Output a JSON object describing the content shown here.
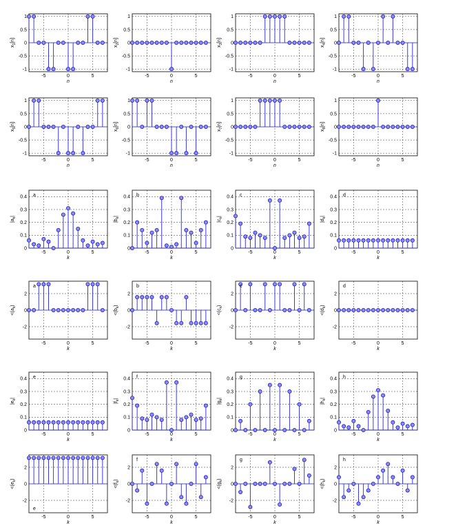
{
  "colors": {
    "stem": "#2323e6",
    "marker_fill": "#8c8cf0",
    "marker_edge": "#1e1ec8",
    "grid": "#000000"
  },
  "axis_defaults": {
    "signal": {
      "xlim": [
        -8,
        8
      ],
      "ylim": [
        -1.1,
        1.1
      ],
      "xticks": [
        "-5",
        "0",
        "5"
      ],
      "yticks": [
        "1",
        "0.5",
        "0",
        "-0.5",
        "-1"
      ],
      "xlabel": "n"
    },
    "magnitude": {
      "xlim": [
        -8,
        8
      ],
      "ylim": [
        0,
        0.45
      ],
      "xticks": [
        "-5",
        "0",
        "5"
      ],
      "yticks": [
        "0.4",
        "0.3",
        "0.2",
        "0.1",
        "0"
      ],
      "xlabel": "k"
    },
    "phase": {
      "xlim": [
        -8,
        8
      ],
      "ylim": [
        -3.5,
        3.5
      ],
      "xticks": [
        "-5",
        "0",
        "5"
      ],
      "yticks": [
        "2",
        "0",
        "-2"
      ],
      "xlabel": "k"
    }
  },
  "chart_data": [
    {
      "type": "stem",
      "id": "x1",
      "kind": "signal",
      "ylabel": "x1[n]",
      "panel_label": "",
      "x": [
        -8,
        -7,
        -6,
        -5,
        -4,
        -3,
        -2,
        -1,
        0,
        1,
        2,
        3,
        4,
        5,
        6,
        7
      ],
      "values": [
        1,
        1,
        0,
        0,
        -1,
        -1,
        0,
        0,
        -1,
        -1,
        0,
        0,
        1,
        1,
        0,
        0
      ]
    },
    {
      "type": "stem",
      "id": "x2",
      "kind": "signal",
      "ylabel": "x2[n]",
      "panel_label": "",
      "x": [
        -8,
        -7,
        -6,
        -5,
        -4,
        -3,
        -2,
        -1,
        0,
        1,
        2,
        3,
        4,
        5,
        6,
        7
      ],
      "values": [
        0,
        0,
        0,
        0,
        0,
        0,
        0,
        0,
        -1,
        0,
        0,
        0,
        0,
        0,
        0,
        0
      ]
    },
    {
      "type": "stem",
      "id": "x3",
      "kind": "signal",
      "ylabel": "x3[n]",
      "panel_label": "",
      "x": [
        -8,
        -7,
        -6,
        -5,
        -4,
        -3,
        -2,
        -1,
        0,
        1,
        2,
        3,
        4,
        5,
        6,
        7
      ],
      "values": [
        0,
        0,
        0,
        0,
        0,
        0,
        1,
        1,
        1,
        1,
        1,
        0,
        0,
        0,
        0,
        0
      ]
    },
    {
      "type": "stem",
      "id": "x4",
      "kind": "signal",
      "ylabel": "x4[n]",
      "panel_label": "",
      "x": [
        -8,
        -7,
        -6,
        -5,
        -4,
        -3,
        -2,
        -1,
        0,
        1,
        2,
        3,
        4,
        5,
        6,
        7
      ],
      "values": [
        0,
        1,
        1,
        0,
        0,
        -1,
        0,
        -1,
        0,
        1,
        0,
        1,
        0,
        0,
        -1,
        -1
      ]
    },
    {
      "type": "stem",
      "id": "x5",
      "kind": "signal",
      "ylabel": "x5[n]",
      "panel_label": "",
      "x": [
        -8,
        -7,
        -6,
        -5,
        -4,
        -3,
        -2,
        -1,
        0,
        1,
        2,
        3,
        4,
        5,
        6,
        7
      ],
      "values": [
        0,
        1,
        1,
        0,
        0,
        0,
        -1,
        0,
        -1,
        -1,
        0,
        -1,
        0,
        0,
        1,
        1
      ]
    },
    {
      "type": "stem",
      "id": "x6",
      "kind": "signal",
      "ylabel": "x6[n]",
      "panel_label": "",
      "x": [
        -8,
        -7,
        -6,
        -5,
        -4,
        -3,
        -2,
        -1,
        0,
        1,
        2,
        3,
        4,
        5,
        6,
        7
      ],
      "values": [
        1,
        1,
        0,
        1,
        1,
        0,
        0,
        0,
        -1,
        -1,
        0,
        -1,
        0,
        -1,
        0,
        0
      ]
    },
    {
      "type": "stem",
      "id": "x7",
      "kind": "signal",
      "ylabel": "x7[n]",
      "panel_label": "",
      "x": [
        -8,
        -7,
        -6,
        -5,
        -4,
        -3,
        -2,
        -1,
        0,
        1,
        2,
        3,
        4,
        5,
        6,
        7
      ],
      "values": [
        0,
        0,
        0,
        0,
        0,
        1,
        1,
        1,
        1,
        1,
        0,
        0,
        0,
        0,
        0,
        0
      ]
    },
    {
      "type": "stem",
      "id": "x8",
      "kind": "signal",
      "ylabel": "x8[n]",
      "panel_label": "",
      "x": [
        -8,
        -7,
        -6,
        -5,
        -4,
        -3,
        -2,
        -1,
        0,
        1,
        2,
        3,
        4,
        5,
        6,
        7
      ],
      "values": [
        0,
        0,
        0,
        0,
        0,
        0,
        0,
        0,
        1,
        0,
        0,
        0,
        0,
        0,
        0,
        0
      ]
    },
    {
      "type": "stem",
      "id": "mag-a",
      "kind": "magnitude",
      "ylabel": "|ak|",
      "panel_label": "a",
      "x": [
        -8,
        -7,
        -6,
        -5,
        -4,
        -3,
        -2,
        -1,
        0,
        1,
        2,
        3,
        4,
        5,
        6,
        7
      ],
      "values": [
        0.06,
        0.03,
        0.02,
        0.07,
        0.05,
        0.0,
        0.14,
        0.26,
        0.31,
        0.27,
        0.15,
        0.06,
        0.02,
        0.05,
        0.03,
        0.04
      ]
    },
    {
      "type": "stem",
      "id": "mag-b",
      "kind": "magnitude",
      "ylabel": "|bk|",
      "panel_label": "b",
      "x": [
        -8,
        -7,
        -6,
        -5,
        -4,
        -3,
        -2,
        -1,
        0,
        1,
        2,
        3,
        4,
        5,
        6,
        7
      ],
      "values": [
        0.0,
        0.2,
        0.14,
        0.04,
        0.12,
        0.14,
        0.39,
        0.02,
        0.01,
        0.03,
        0.39,
        0.14,
        0.12,
        0.04,
        0.14,
        0.2
      ]
    },
    {
      "type": "stem",
      "id": "mag-c",
      "kind": "magnitude",
      "ylabel": "|ck|",
      "panel_label": "c",
      "x": [
        -8,
        -7,
        -6,
        -5,
        -4,
        -3,
        -2,
        -1,
        0,
        1,
        2,
        3,
        4,
        5,
        6,
        7
      ],
      "values": [
        0.25,
        0.19,
        0.09,
        0.08,
        0.12,
        0.1,
        0.08,
        0.37,
        0.0,
        0.37,
        0.08,
        0.1,
        0.12,
        0.08,
        0.09,
        0.19
      ]
    },
    {
      "type": "stem",
      "id": "mag-d",
      "kind": "magnitude",
      "ylabel": "|dk|",
      "panel_label": "d",
      "x": [
        -8,
        -7,
        -6,
        -5,
        -4,
        -3,
        -2,
        -1,
        0,
        1,
        2,
        3,
        4,
        5,
        6,
        7
      ],
      "values": [
        0.06,
        0.06,
        0.06,
        0.06,
        0.06,
        0.06,
        0.06,
        0.06,
        0.06,
        0.06,
        0.06,
        0.06,
        0.06,
        0.06,
        0.06,
        0.06
      ]
    },
    {
      "type": "stem",
      "id": "ph-a",
      "kind": "phase",
      "ylabel": "<(ak)",
      "panel_label": "a",
      "x": [
        -8,
        -7,
        -6,
        -5,
        -4,
        -3,
        -2,
        -1,
        0,
        1,
        2,
        3,
        4,
        5,
        6,
        7
      ],
      "values": [
        0,
        0,
        3.14,
        3.14,
        3.14,
        0,
        0,
        0,
        0,
        0,
        0,
        0,
        3.14,
        3.14,
        3.14,
        0
      ]
    },
    {
      "type": "stem",
      "id": "ph-b",
      "kind": "phase",
      "ylabel": "<(bk)",
      "panel_label": "b",
      "x": [
        -8,
        -7,
        -6,
        -5,
        -4,
        -3,
        -2,
        -1,
        0,
        1,
        2,
        3,
        4,
        5,
        6,
        7
      ],
      "values": [
        0,
        1.57,
        1.57,
        1.57,
        1.57,
        -1.57,
        1.57,
        1.57,
        0,
        -1.57,
        -1.57,
        1.57,
        -1.57,
        -1.57,
        -1.57,
        -1.57
      ]
    },
    {
      "type": "stem",
      "id": "ph-c",
      "kind": "phase",
      "ylabel": "<(ck)",
      "panel_label": "c",
      "x": [
        -8,
        -7,
        -6,
        -5,
        -4,
        -3,
        -2,
        -1,
        0,
        1,
        2,
        3,
        4,
        5,
        6,
        7
      ],
      "values": [
        0,
        3.14,
        0,
        3.14,
        0,
        0,
        3.14,
        0,
        3.14,
        3.14,
        0,
        0,
        3.14,
        0,
        3.14,
        0
      ]
    },
    {
      "type": "stem",
      "id": "ph-d",
      "kind": "phase",
      "ylabel": "<(dk)",
      "panel_label": "d",
      "x": [
        -8,
        -7,
        -6,
        -5,
        -4,
        -3,
        -2,
        -1,
        0,
        1,
        2,
        3,
        4,
        5,
        6,
        7
      ],
      "values": [
        0,
        0,
        0,
        0,
        0,
        0,
        0,
        0,
        0,
        0,
        0,
        0,
        0,
        0,
        0,
        0
      ]
    },
    {
      "type": "stem",
      "id": "mag-e",
      "kind": "magnitude",
      "ylabel": "|ek|",
      "panel_label": "e",
      "x": [
        -8,
        -7,
        -6,
        -5,
        -4,
        -3,
        -2,
        -1,
        0,
        1,
        2,
        3,
        4,
        5,
        6,
        7
      ],
      "values": [
        0.06,
        0.06,
        0.06,
        0.06,
        0.06,
        0.06,
        0.06,
        0.06,
        0.06,
        0.06,
        0.06,
        0.06,
        0.06,
        0.06,
        0.06,
        0.06
      ]
    },
    {
      "type": "stem",
      "id": "mag-f",
      "kind": "magnitude",
      "ylabel": "|fk|",
      "panel_label": "f",
      "x": [
        -8,
        -7,
        -6,
        -5,
        -4,
        -3,
        -2,
        -1,
        0,
        1,
        2,
        3,
        4,
        5,
        6,
        7
      ],
      "values": [
        0.25,
        0.19,
        0.09,
        0.08,
        0.12,
        0.1,
        0.08,
        0.37,
        0.0,
        0.37,
        0.08,
        0.1,
        0.12,
        0.08,
        0.09,
        0.19
      ]
    },
    {
      "type": "stem",
      "id": "mag-g",
      "kind": "magnitude",
      "ylabel": "|gk|",
      "panel_label": "g",
      "x": [
        -8,
        -7,
        -6,
        -5,
        -4,
        -3,
        -2,
        -1,
        0,
        1,
        2,
        3,
        4,
        5,
        6,
        7
      ],
      "values": [
        0.0,
        0.07,
        0.0,
        0.2,
        0.0,
        0.3,
        0.0,
        0.35,
        0.0,
        0.35,
        0.0,
        0.3,
        0.0,
        0.2,
        0.0,
        0.07
      ]
    },
    {
      "type": "stem",
      "id": "mag-h",
      "kind": "magnitude",
      "ylabel": "|hk|",
      "panel_label": "h",
      "x": [
        -8,
        -7,
        -6,
        -5,
        -4,
        -3,
        -2,
        -1,
        0,
        1,
        2,
        3,
        4,
        5,
        6,
        7
      ],
      "values": [
        0.06,
        0.03,
        0.02,
        0.07,
        0.03,
        0.0,
        0.14,
        0.26,
        0.31,
        0.27,
        0.15,
        0.06,
        0.02,
        0.05,
        0.03,
        0.04
      ]
    },
    {
      "type": "stem",
      "id": "ph-e",
      "kind": "phase",
      "ylabel": "<(ek)",
      "panel_label": "e",
      "x": [
        -8,
        -7,
        -6,
        -5,
        -4,
        -3,
        -2,
        -1,
        0,
        1,
        2,
        3,
        4,
        5,
        6,
        7
      ],
      "values": [
        3.14,
        3.14,
        3.14,
        3.14,
        3.14,
        3.14,
        3.14,
        3.14,
        3.14,
        3.14,
        3.14,
        3.14,
        3.14,
        3.14,
        3.14,
        3.14
      ]
    },
    {
      "type": "stem",
      "id": "ph-f",
      "kind": "phase",
      "ylabel": "<(fk)",
      "panel_label": "f",
      "x": [
        -8,
        -7,
        -6,
        -5,
        -4,
        -3,
        -2,
        -1,
        0,
        1,
        2,
        3,
        4,
        5,
        6,
        7
      ],
      "values": [
        0,
        -0.8,
        1.6,
        -2.4,
        0,
        2.4,
        1.6,
        -2.4,
        0,
        2.4,
        -1.6,
        -2.4,
        0,
        2.4,
        -1.6,
        0.8
      ]
    },
    {
      "type": "stem",
      "id": "ph-g",
      "kind": "phase",
      "ylabel": "<(gk)",
      "panel_label": "g",
      "x": [
        -8,
        -7,
        -6,
        -5,
        -4,
        -3,
        -2,
        -1,
        0,
        1,
        2,
        3,
        4,
        5,
        6,
        7
      ],
      "values": [
        0,
        -1.0,
        0,
        -2.8,
        0,
        0,
        0,
        2.6,
        0,
        -2.5,
        0,
        0,
        1.8,
        0,
        2.9,
        1.0
      ]
    },
    {
      "type": "stem",
      "id": "ph-h",
      "kind": "phase",
      "ylabel": "<(hk)",
      "panel_label": "h",
      "x": [
        -8,
        -7,
        -6,
        -5,
        -4,
        -3,
        -2,
        -1,
        0,
        1,
        2,
        3,
        4,
        5,
        6,
        7
      ],
      "values": [
        0.8,
        -1.6,
        -0.8,
        0,
        -2.4,
        -1.6,
        -0.8,
        0,
        0.8,
        1.6,
        2.4,
        0.8,
        0,
        1.6,
        -0.8,
        0.8
      ]
    }
  ]
}
